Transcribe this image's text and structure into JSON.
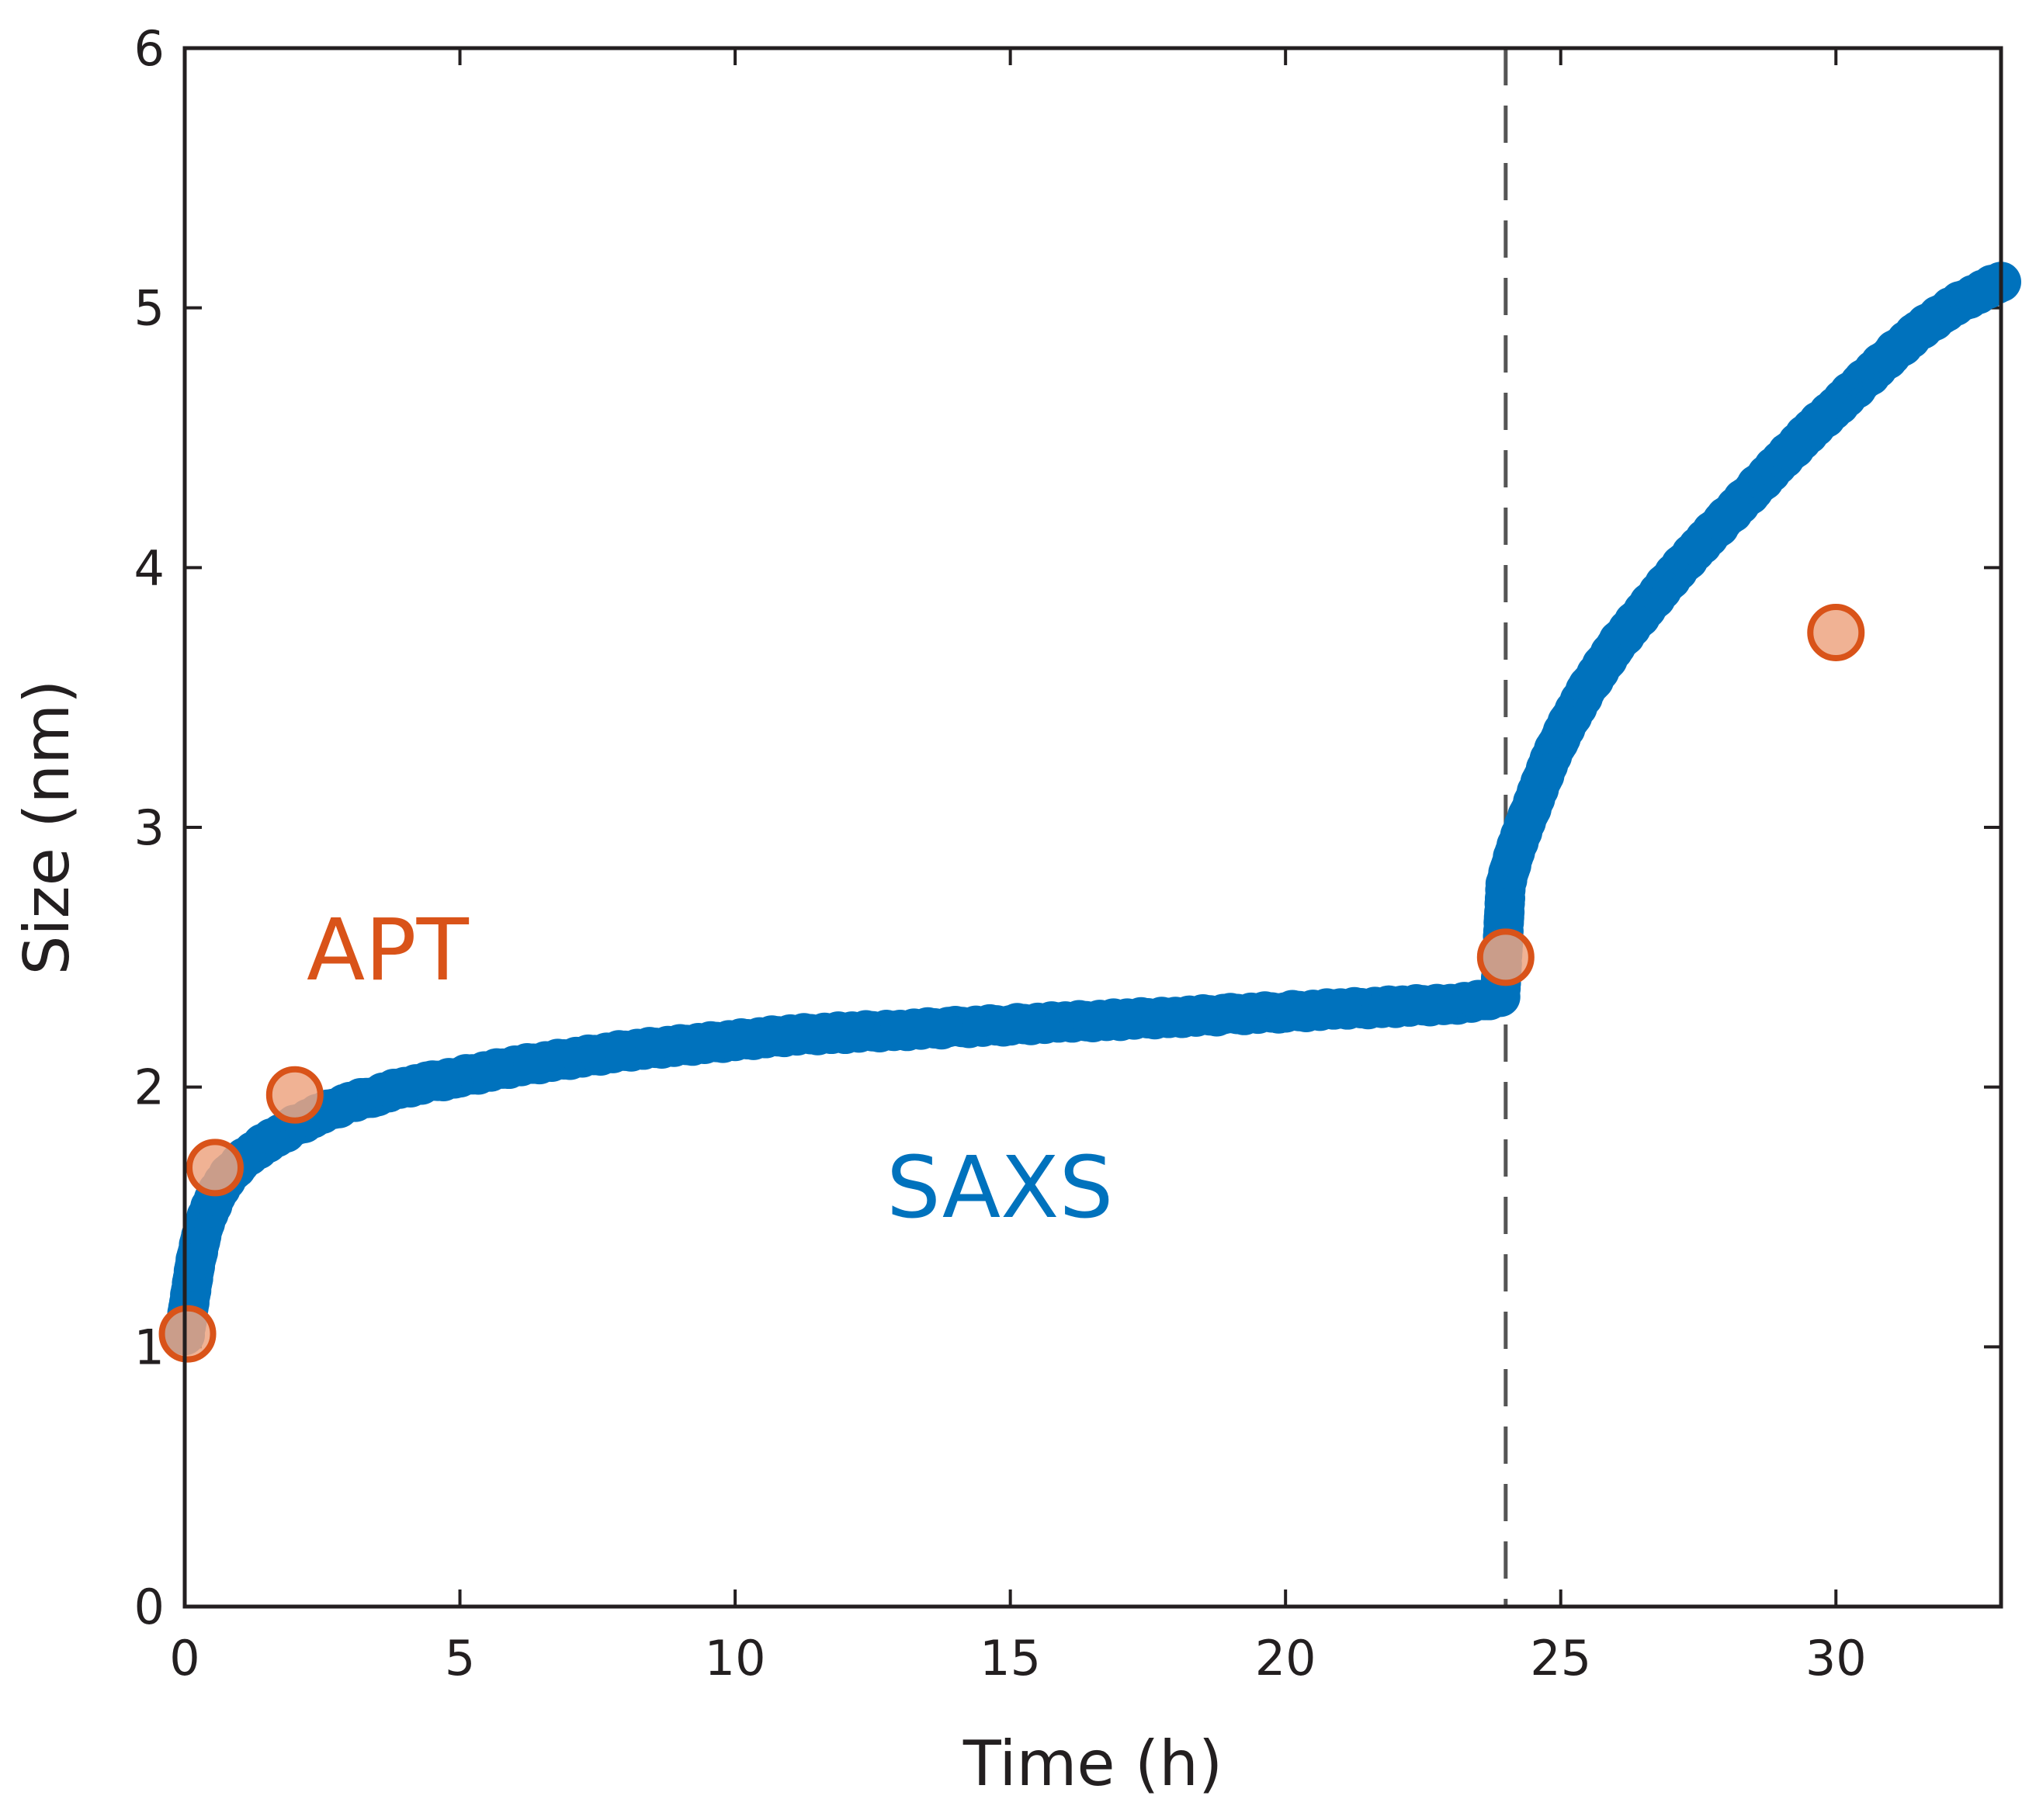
{
  "chart_data": {
    "type": "scatter",
    "xlabel": "Time (h)",
    "ylabel": "Size (nm)",
    "xlim": [
      0,
      33
    ],
    "ylim": [
      0,
      6
    ],
    "xticks": [
      "0",
      "5",
      "10",
      "15",
      "20",
      "25",
      "30"
    ],
    "yticks": [
      "0",
      "1",
      "2",
      "3",
      "4",
      "5",
      "6"
    ],
    "grid": false,
    "legend": "none",
    "vertical_reference_line": {
      "x": 24,
      "style": "dashed"
    },
    "annotations": [
      {
        "text": "APT",
        "color": "#d95319"
      },
      {
        "text": "SAXS",
        "color": "#0072bd"
      }
    ],
    "series": [
      {
        "name": "SAXS",
        "marker": "filled-circle",
        "color": "#0072bd",
        "x": [
          0,
          0.1,
          0.2,
          0.3,
          0.4,
          0.5,
          0.6,
          0.8,
          1.0,
          1.25,
          1.5,
          1.75,
          2.0,
          2.5,
          3.0,
          3.5,
          4.0,
          4.5,
          5.0,
          6.0,
          7.0,
          8.0,
          9.0,
          10.0,
          11.0,
          12.0,
          13.0,
          14.0,
          15.0,
          16.0,
          17.0,
          18.0,
          19.0,
          20.0,
          21.0,
          22.0,
          23.0,
          23.5,
          23.9,
          24.0,
          24.1,
          24.2,
          24.4,
          24.6,
          24.8,
          25.0,
          25.25,
          25.5,
          26.0,
          26.5,
          27.0,
          27.5,
          28.0,
          28.5,
          29.0,
          29.5,
          30.0,
          30.5,
          31.0,
          31.5,
          32.0,
          32.5,
          33.0
        ],
        "y": [
          1.05,
          1.2,
          1.33,
          1.43,
          1.5,
          1.55,
          1.6,
          1.66,
          1.71,
          1.75,
          1.79,
          1.82,
          1.85,
          1.9,
          1.94,
          1.97,
          2.0,
          2.02,
          2.04,
          2.08,
          2.11,
          2.14,
          2.16,
          2.18,
          2.2,
          2.21,
          2.22,
          2.23,
          2.24,
          2.25,
          2.26,
          2.27,
          2.28,
          2.29,
          2.3,
          2.31,
          2.32,
          2.33,
          2.35,
          2.78,
          2.86,
          2.93,
          3.04,
          3.15,
          3.26,
          3.35,
          3.45,
          3.54,
          3.7,
          3.83,
          3.96,
          4.08,
          4.19,
          4.3,
          4.41,
          4.52,
          4.62,
          4.72,
          4.82,
          4.91,
          4.99,
          5.05,
          5.1
        ]
      },
      {
        "name": "APT",
        "marker": "open-circle-translucent-fill",
        "color": "#d95319",
        "fill": "#eda581",
        "x": [
          0.05,
          0.55,
          2.0,
          24.0,
          30.0
        ],
        "y": [
          1.05,
          1.69,
          1.97,
          2.5,
          3.75
        ]
      }
    ]
  }
}
